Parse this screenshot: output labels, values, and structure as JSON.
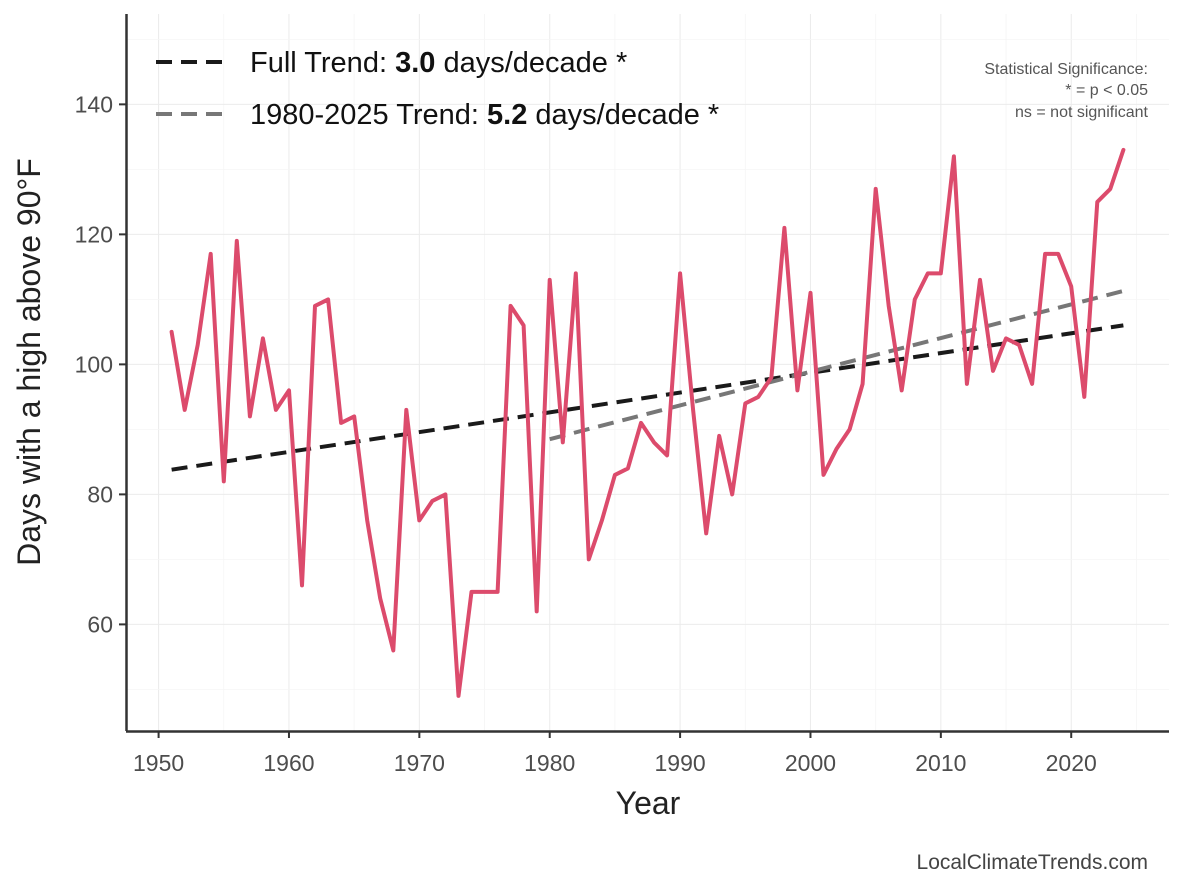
{
  "chart_data": {
    "type": "line",
    "xlabel": "Year",
    "ylabel": "Days with a high above 90°F",
    "xlim": [
      1947.5,
      2027.5
    ],
    "ylim": [
      43.6,
      153.9
    ],
    "xticks": [
      1950,
      1960,
      1970,
      1980,
      1990,
      2000,
      2010,
      2020
    ],
    "yticks": [
      60,
      80,
      100,
      120,
      140
    ],
    "grid": true,
    "legend_position": "top-left",
    "legend": [
      {
        "prefix": "Full Trend: ",
        "value": "3.0",
        "suffix": " days/decade *"
      },
      {
        "prefix": "1980-2025 Trend: ",
        "value": "5.2",
        "suffix": " days/decade *"
      }
    ],
    "significance_note": [
      "Statistical Significance:",
      "* = p < 0.05",
      "ns = not significant"
    ],
    "credit": "LocalClimateTrends.com",
    "series": {
      "color": "#dc4b6c",
      "x": [
        1951,
        1952,
        1953,
        1954,
        1955,
        1956,
        1957,
        1958,
        1959,
        1960,
        1961,
        1962,
        1963,
        1964,
        1965,
        1966,
        1967,
        1968,
        1969,
        1970,
        1971,
        1972,
        1973,
        1974,
        1975,
        1976,
        1977,
        1978,
        1979,
        1980,
        1981,
        1982,
        1983,
        1984,
        1985,
        1986,
        1987,
        1988,
        1989,
        1990,
        1991,
        1992,
        1993,
        1994,
        1995,
        1996,
        1997,
        1998,
        1999,
        2000,
        2001,
        2002,
        2003,
        2004,
        2005,
        2006,
        2007,
        2008,
        2009,
        2010,
        2011,
        2012,
        2013,
        2014,
        2015,
        2016,
        2017,
        2018,
        2019,
        2020,
        2021,
        2022,
        2023,
        2024
      ],
      "y": [
        105,
        93,
        103,
        117,
        82,
        119,
        92,
        104,
        93,
        96,
        66,
        109,
        110,
        91,
        92,
        76,
        64,
        56,
        93,
        76,
        79,
        80,
        49,
        65,
        65,
        65,
        109,
        106,
        62,
        113,
        88,
        114,
        70,
        76,
        83,
        84,
        91,
        88,
        86,
        114,
        93,
        74,
        89,
        80,
        94,
        95,
        98,
        121,
        96,
        111,
        83,
        87,
        90,
        97,
        127,
        109,
        96,
        110,
        114,
        114,
        132,
        97,
        113,
        99,
        104,
        103,
        97,
        117,
        117,
        112,
        95,
        125,
        127,
        133
      ]
    },
    "trend_lines": [
      {
        "name": "full",
        "color": "#1a1a1a",
        "x": [
          1951,
          2024
        ],
        "y": [
          83.8,
          106.0
        ]
      },
      {
        "name": "1980-2025",
        "color": "#777777",
        "x": [
          1980,
          2024
        ],
        "y": [
          88.5,
          111.3
        ]
      }
    ]
  }
}
